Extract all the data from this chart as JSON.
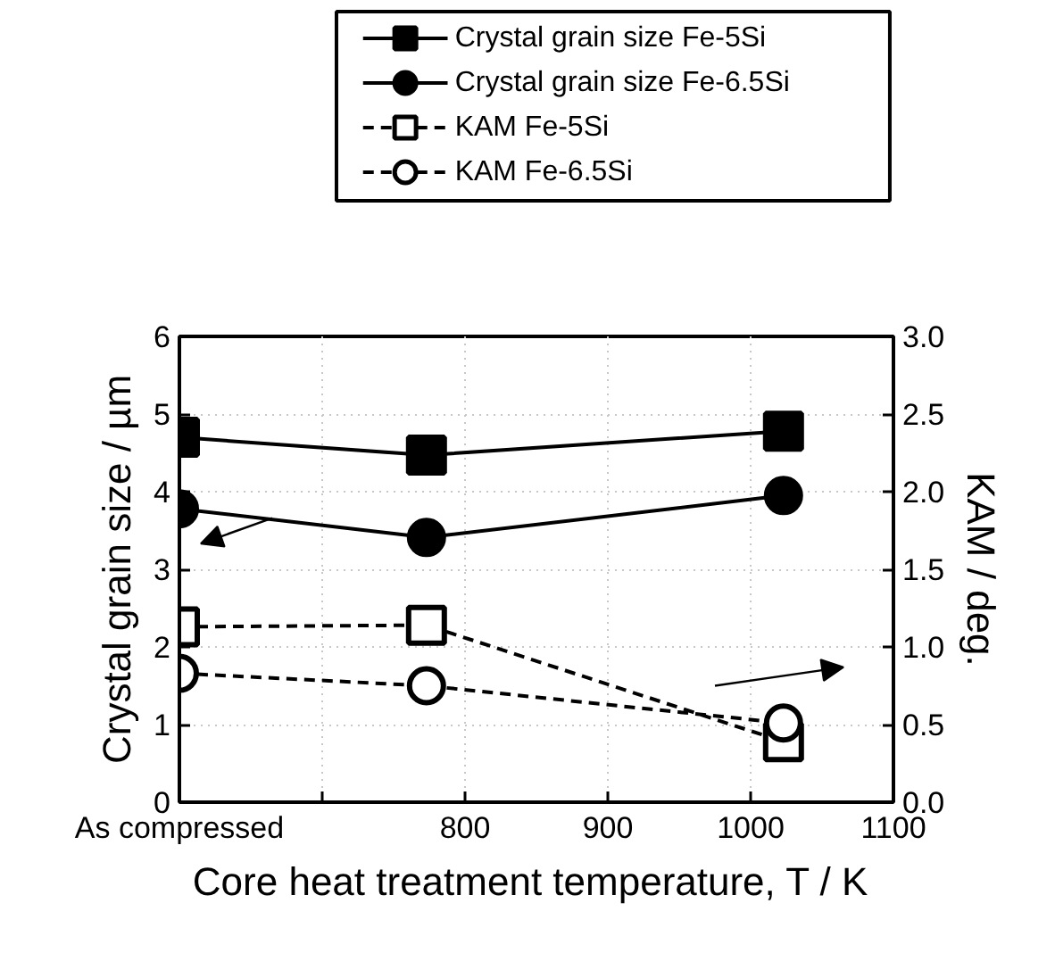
{
  "chart_data": {
    "type": "line",
    "xlabel": "Core heat  treatment temperature, T / K",
    "ylabel": "Crystal grain size / µm",
    "y2label": "KAM / deg.",
    "x": [
      600,
      773,
      1023
    ],
    "xlim": [
      600,
      1100
    ],
    "xticks": [
      {
        "value": 600,
        "label": "As compressed"
      },
      {
        "value": 700,
        "label": null
      },
      800,
      900,
      1000,
      1100
    ],
    "ylim": [
      0,
      6
    ],
    "yticks": [
      0,
      1,
      2,
      3,
      4,
      5,
      6
    ],
    "y2lim": [
      0,
      3
    ],
    "y2ticks": [
      {
        "value": 0,
        "label": "0.0"
      },
      0.5,
      {
        "value": 1,
        "label": "1.0"
      },
      1.5,
      {
        "value": 2,
        "label": "2.0"
      },
      2.5,
      {
        "value": 3,
        "label": "3.0"
      }
    ],
    "grid": true,
    "legend": "top",
    "series": [
      {
        "name": "Crystal grain size Fe-5Si",
        "color": "#000000",
        "values": [
          4.7,
          4.47,
          4.78
        ],
        "marker": "square",
        "line_style": "solid"
      },
      {
        "name": "Crystal grain size Fe-6.5Si",
        "color": "#000000",
        "values": [
          3.78,
          3.41,
          3.95
        ],
        "marker": "circle",
        "line_style": "solid"
      },
      {
        "name": "KAM Fe-5Si",
        "color": "#000000",
        "values": [
          1.13,
          1.14,
          0.39
        ],
        "marker": "square",
        "line_style": "dashed",
        "axis": "y2"
      },
      {
        "name": "KAM Fe-6.5Si",
        "color": "#000000",
        "values": [
          0.83,
          0.75,
          0.51
        ],
        "marker": "circle",
        "line_style": "dashed",
        "axis": "y2"
      }
    ]
  }
}
